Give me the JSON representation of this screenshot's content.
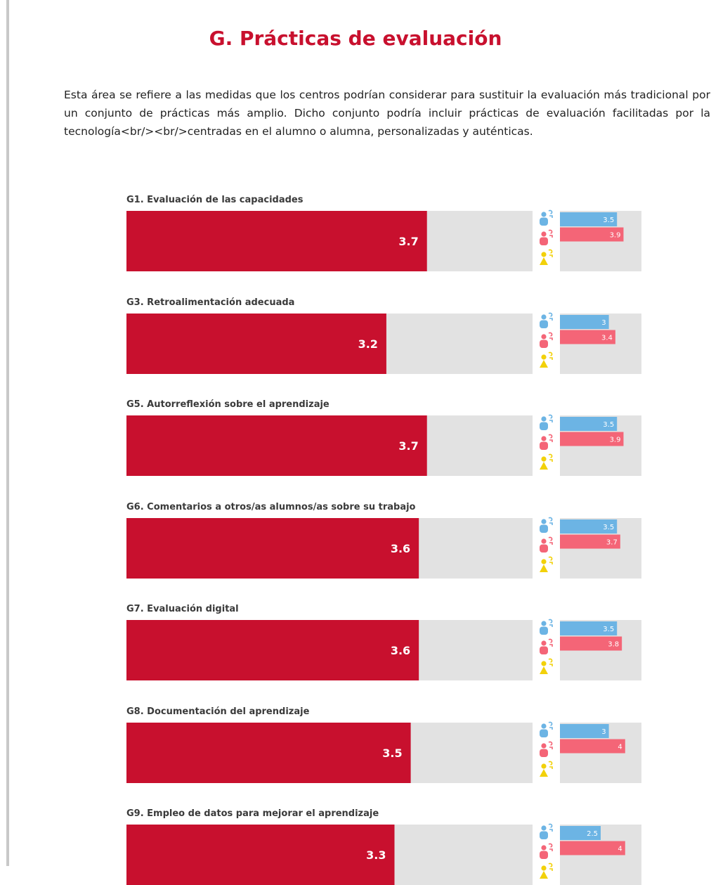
{
  "page": {
    "title": "G. Prácticas de evaluación",
    "intro": "Esta área se refiere a las medidas que los centros podrían considerar para sustituir la evaluación más tradicional por un conjunto de prácticas más amplio. Dicho conjunto podría incluir prácticas de evaluación facilitadas por la tecnología<br/><br/>centradas en el alumno o alumna, personalizadas y auténticas."
  },
  "colors": {
    "main_bar": "#c8102e",
    "track": "#e2e2e2",
    "group_1": "#6cb4e4",
    "group_2": "#f46577",
    "group_3": "#f2d10a"
  },
  "icons": [
    "teacher-icon",
    "student-icon",
    "leader-icon"
  ],
  "chart_data": {
    "type": "bar",
    "orientation": "horizontal",
    "xlim": [
      0,
      5
    ],
    "categories": [
      "G1. Evaluación de las capacidades",
      "G3. Retroalimentación adecuada",
      "G5. Autorreflexión sobre el aprendizaje",
      "G6. Comentarios a otros/as alumnos/as sobre su trabajo",
      "G7. Evaluación digital",
      "G8. Documentación del aprendizaje",
      "G9. Empleo de datos para mejorar el aprendizaje"
    ],
    "main_values": [
      3.7,
      3.2,
      3.7,
      3.6,
      3.6,
      3.5,
      3.3
    ],
    "series": [
      {
        "icon": "teacher-icon",
        "color": "#6cb4e4",
        "values": [
          3.5,
          3,
          3.5,
          3.5,
          3.5,
          3,
          2.5
        ]
      },
      {
        "icon": "student-icon",
        "color": "#f46577",
        "values": [
          3.9,
          3.4,
          3.9,
          3.7,
          3.8,
          4,
          4
        ]
      },
      {
        "icon": "leader-icon",
        "color": "#f2d10a",
        "values": [
          null,
          null,
          null,
          null,
          null,
          null,
          null
        ]
      }
    ]
  }
}
